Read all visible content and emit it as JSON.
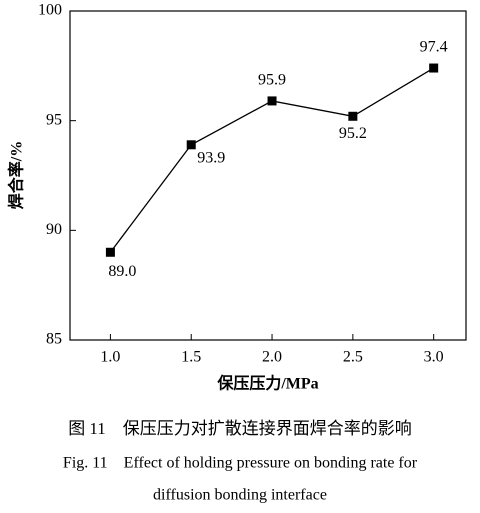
{
  "chart_data": {
    "type": "line",
    "x": [
      1.0,
      1.5,
      2.0,
      2.5,
      3.0
    ],
    "values": [
      89.0,
      93.9,
      95.9,
      95.2,
      97.4
    ],
    "value_labels": [
      "89.0",
      "93.9",
      "95.9",
      "95.2",
      "97.4"
    ],
    "color": "#000000",
    "xlim": [
      0.75,
      3.2
    ],
    "xticks": [
      {
        "value": 1.0,
        "label": "1.0"
      },
      {
        "value": 1.5,
        "label": "1.5"
      },
      {
        "value": 2.0,
        "label": "2.0"
      },
      {
        "value": 2.5,
        "label": "2.5"
      },
      {
        "value": 3.0,
        "label": "3.0"
      }
    ],
    "ylim": [
      85,
      100
    ],
    "yticks": [
      85,
      90,
      95,
      100
    ],
    "xlabel": "保压压力/MPa",
    "ylabel": "焊合率/%",
    "caption_cn": "图 11　保压压力对扩散连接界面焊合率的影响",
    "caption_en": [
      "Fig. 11　Effect of holding pressure on bonding rate for",
      "diffusion bonding interface"
    ]
  }
}
